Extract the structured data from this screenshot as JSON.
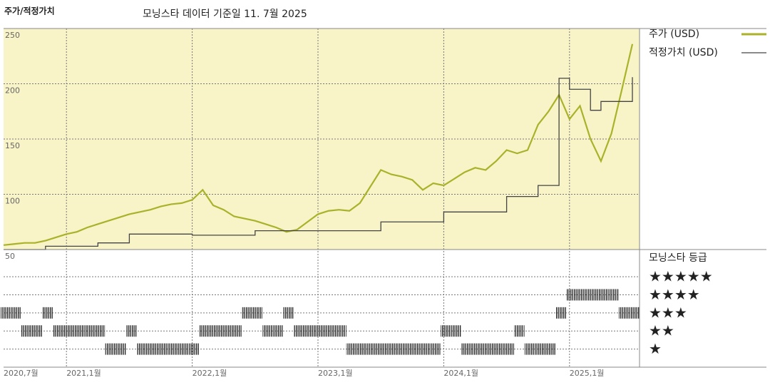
{
  "chart_data": [
    {
      "type": "line",
      "title": "주가/적정가치",
      "subtitle": "모닝스타 데이터 기준일 11. 7월 2025",
      "background": "#f8f4c8",
      "grid": true,
      "x": [
        "2020-07",
        "2020-08",
        "2020-09",
        "2020-10",
        "2020-11",
        "2020-12",
        "2021-01",
        "2021-02",
        "2021-03",
        "2021-04",
        "2021-05",
        "2021-06",
        "2021-07",
        "2021-08",
        "2021-09",
        "2021-10",
        "2021-11",
        "2021-12",
        "2022-01",
        "2022-02",
        "2022-03",
        "2022-04",
        "2022-05",
        "2022-06",
        "2022-07",
        "2022-08",
        "2022-09",
        "2022-10",
        "2022-11",
        "2022-12",
        "2023-01",
        "2023-02",
        "2023-03",
        "2023-04",
        "2023-05",
        "2023-06",
        "2023-07",
        "2023-08",
        "2023-09",
        "2023-10",
        "2023-11",
        "2023-12",
        "2024-01",
        "2024-02",
        "2024-03",
        "2024-04",
        "2024-05",
        "2024-06",
        "2024-07",
        "2024-08",
        "2024-09",
        "2024-10",
        "2024-11",
        "2024-12",
        "2025-01",
        "2025-02",
        "2025-03",
        "2025-04",
        "2025-05",
        "2025-06",
        "2025-07"
      ],
      "xlim": [
        "2020-07",
        "2025-07"
      ],
      "xticks": [
        {
          "value": "2020-07",
          "label": "2020,7월"
        },
        {
          "value": "2021-01",
          "label": "2021,1월"
        },
        {
          "value": "2022-01",
          "label": "2022,1월"
        },
        {
          "value": "2023-01",
          "label": "2023,1월"
        },
        {
          "value": "2024-01",
          "label": "2024,1월"
        },
        {
          "value": "2025-01",
          "label": "2025,1월"
        }
      ],
      "ylim": [
        50,
        250
      ],
      "yticks": [
        50,
        100,
        150,
        200,
        250
      ],
      "series": [
        {
          "name": "주가 (USD)",
          "color": "#a9b22a",
          "values": [
            54,
            55,
            56,
            56,
            58,
            61,
            64,
            66,
            70,
            73,
            76,
            79,
            82,
            84,
            86,
            89,
            91,
            92,
            95,
            104,
            90,
            86,
            80,
            78,
            76,
            73,
            70,
            66,
            68,
            75,
            82,
            85,
            86,
            85,
            92,
            107,
            122,
            118,
            116,
            113,
            104,
            110,
            108,
            114,
            120,
            124,
            122,
            130,
            140,
            137,
            140,
            163,
            175,
            190,
            168,
            180,
            150,
            130,
            155,
            195,
            236
          ]
        },
        {
          "name": "적정가치 (USD)",
          "color": "#444444",
          "step": true,
          "values": [
            50,
            50,
            50,
            50,
            53,
            53,
            53,
            53,
            53,
            56,
            56,
            56,
            64,
            64,
            64,
            64,
            64,
            64,
            63,
            63,
            63,
            63,
            63,
            63,
            67,
            67,
            67,
            67,
            67,
            67,
            67,
            67,
            67,
            67,
            67,
            67,
            75,
            75,
            75,
            75,
            75,
            75,
            84,
            84,
            84,
            84,
            84,
            84,
            98,
            98,
            98,
            108,
            108,
            205,
            195,
            195,
            176,
            184,
            184,
            184,
            206
          ]
        }
      ]
    },
    {
      "type": "rating",
      "title": "모닝스타 등급",
      "color": "#222222",
      "x": [
        "2020-07",
        "2020-08",
        "2020-09",
        "2020-10",
        "2020-11",
        "2020-12",
        "2021-01",
        "2021-02",
        "2021-03",
        "2021-04",
        "2021-05",
        "2021-06",
        "2021-07",
        "2021-08",
        "2021-09",
        "2021-10",
        "2021-11",
        "2021-12",
        "2022-01",
        "2022-02",
        "2022-03",
        "2022-04",
        "2022-05",
        "2022-06",
        "2022-07",
        "2022-08",
        "2022-09",
        "2022-10",
        "2022-11",
        "2022-12",
        "2023-01",
        "2023-02",
        "2023-03",
        "2023-04",
        "2023-05",
        "2023-06",
        "2023-07",
        "2023-08",
        "2023-09",
        "2023-10",
        "2023-11",
        "2023-12",
        "2024-01",
        "2024-02",
        "2024-03",
        "2024-04",
        "2024-05",
        "2024-06",
        "2024-07",
        "2024-08",
        "2024-09",
        "2024-10",
        "2024-11",
        "2024-12",
        "2025-01",
        "2025-02",
        "2025-03",
        "2025-04",
        "2025-05",
        "2025-06",
        "2025-07"
      ],
      "xlim": [
        "2020-07",
        "2025-07"
      ],
      "values": [
        3,
        3,
        2,
        2,
        3,
        2,
        2,
        2,
        2,
        2,
        1,
        1,
        2,
        1,
        1,
        1,
        1,
        1,
        1,
        2,
        2,
        2,
        2,
        3,
        3,
        2,
        2,
        3,
        2,
        2,
        2,
        2,
        2,
        1,
        1,
        1,
        1,
        1,
        1,
        1,
        1,
        1,
        2,
        2,
        1,
        1,
        1,
        1,
        1,
        2,
        1,
        1,
        1,
        3,
        4,
        4,
        4,
        4,
        4,
        3,
        3
      ],
      "ylim": [
        0,
        6.5
      ],
      "yticks": [
        {
          "value": 1,
          "label": "★"
        },
        {
          "value": 2,
          "label": "★★"
        },
        {
          "value": 3,
          "label": "★★★"
        },
        {
          "value": 4,
          "label": "★★★★"
        },
        {
          "value": 5,
          "label": "★★★★★"
        }
      ]
    }
  ]
}
